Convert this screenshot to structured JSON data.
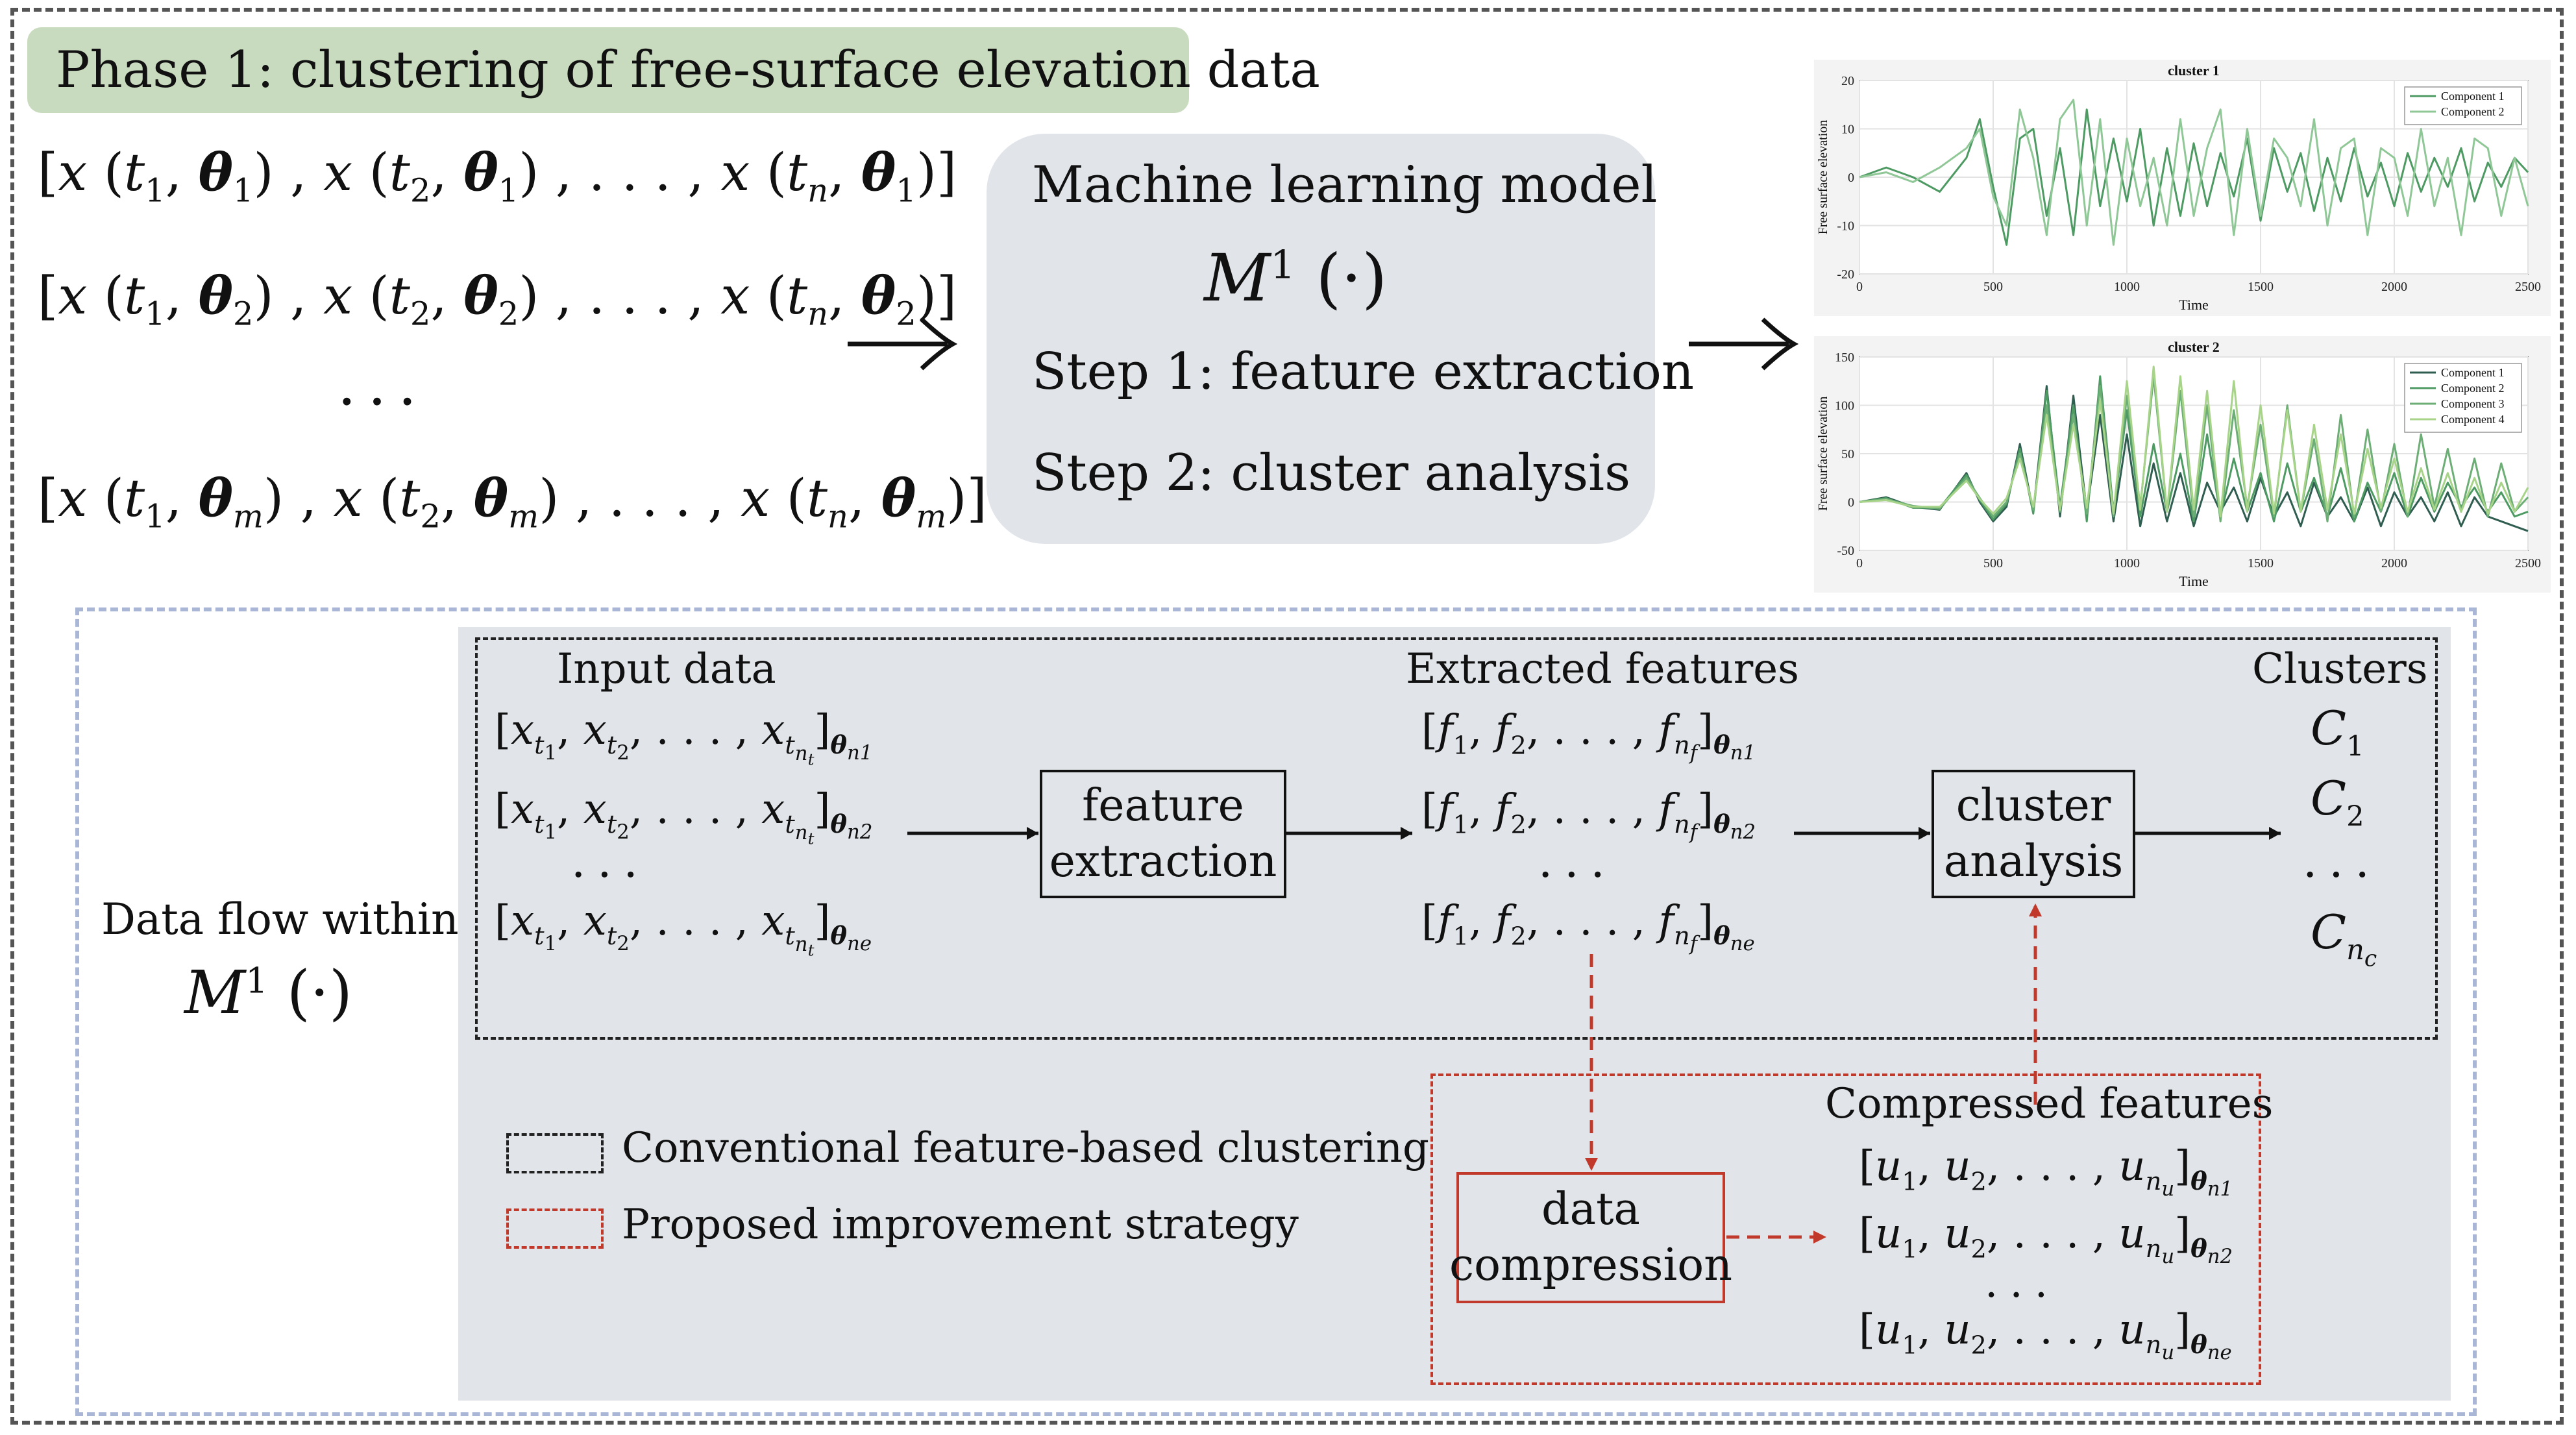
{
  "phase": {
    "title": "Phase 1: clustering of free-surface elevation data"
  },
  "inputs": {
    "row1": "θ1",
    "row2": "θ2",
    "row3": "θm",
    "ellipsis": "..."
  },
  "model": {
    "title": "Machine learning model",
    "symbol": "M",
    "superscript": "1",
    "arg": "(·)",
    "step1": "Step 1: feature extraction",
    "step2": "Step 2: cluster analysis"
  },
  "chart_data": [
    {
      "type": "line",
      "title": "cluster 1",
      "xlabel": "Time",
      "ylabel": "Free surface elevation",
      "xlim": [
        0,
        2500
      ],
      "ylim": [
        -20,
        20
      ],
      "xticks": [
        0,
        500,
        1000,
        1500,
        2000,
        2500
      ],
      "yticks": [
        -20,
        -10,
        0,
        10,
        20
      ],
      "grid": true,
      "legend": "top-right",
      "x": [
        0,
        100,
        200,
        300,
        400,
        450,
        500,
        550,
        600,
        650,
        700,
        750,
        800,
        850,
        900,
        950,
        1000,
        1050,
        1100,
        1150,
        1200,
        1250,
        1300,
        1350,
        1400,
        1450,
        1500,
        1550,
        1600,
        1650,
        1700,
        1750,
        1800,
        1850,
        1900,
        1950,
        2000,
        2050,
        2100,
        2150,
        2200,
        2250,
        2300,
        2350,
        2400,
        2450,
        2500
      ],
      "series": [
        {
          "name": "Component 1",
          "color": "#4e9a63",
          "values": [
            0,
            2,
            0,
            -3,
            4,
            12,
            -2,
            -14,
            8,
            10,
            -8,
            6,
            -12,
            14,
            -6,
            8,
            -5,
            10,
            -10,
            6,
            -8,
            7,
            -6,
            5,
            -4,
            8,
            -9,
            6,
            -3,
            5,
            -7,
            4,
            -5,
            6,
            -4,
            3,
            -6,
            5,
            -3,
            4,
            -2,
            6,
            -5,
            3,
            -2,
            4,
            1
          ]
        },
        {
          "name": "Component 2",
          "color": "#8fc796",
          "values": [
            0,
            1,
            -1,
            2,
            6,
            10,
            -4,
            -10,
            14,
            4,
            -12,
            12,
            16,
            -10,
            12,
            -14,
            8,
            -6,
            4,
            -10,
            12,
            -8,
            6,
            14,
            -12,
            10,
            -8,
            8,
            4,
            -6,
            12,
            -10,
            6,
            8,
            -12,
            6,
            4,
            -8,
            10,
            -6,
            4,
            -12,
            8,
            6,
            -8,
            4,
            -6
          ]
        }
      ]
    },
    {
      "type": "line",
      "title": "cluster 2",
      "xlabel": "Time",
      "ylabel": "Free surface elevation",
      "xlim": [
        0,
        2500
      ],
      "ylim": [
        -50,
        150
      ],
      "xticks": [
        0,
        500,
        1000,
        1500,
        2000,
        2500
      ],
      "yticks": [
        -50,
        0,
        50,
        100,
        150
      ],
      "grid": true,
      "legend": "top-right",
      "x": [
        0,
        100,
        200,
        300,
        400,
        450,
        500,
        550,
        600,
        650,
        700,
        750,
        800,
        850,
        900,
        950,
        1000,
        1050,
        1100,
        1150,
        1200,
        1250,
        1300,
        1350,
        1400,
        1450,
        1500,
        1550,
        1600,
        1650,
        1700,
        1750,
        1800,
        1850,
        1900,
        1950,
        2000,
        2050,
        2100,
        2150,
        2200,
        2250,
        2300,
        2350,
        2400,
        2450,
        2500
      ],
      "series": [
        {
          "name": "Component 1",
          "color": "#2f5d50",
          "values": [
            0,
            5,
            -5,
            -8,
            30,
            0,
            -20,
            -5,
            60,
            -10,
            120,
            -15,
            110,
            -10,
            90,
            -20,
            70,
            -25,
            40,
            -20,
            30,
            -25,
            20,
            -10,
            15,
            -20,
            25,
            -15,
            10,
            -25,
            20,
            -15,
            5,
            -20,
            15,
            -25,
            10,
            -15,
            5,
            -20,
            10,
            -25,
            5,
            -15,
            -20,
            -25,
            -30
          ]
        },
        {
          "name": "Component 2",
          "color": "#4e9a63",
          "values": [
            0,
            4,
            -6,
            -6,
            28,
            2,
            -18,
            -2,
            55,
            -12,
            115,
            -5,
            100,
            -20,
            130,
            -10,
            95,
            -15,
            60,
            -10,
            50,
            -20,
            70,
            -15,
            45,
            -10,
            30,
            -20,
            40,
            -10,
            25,
            -15,
            35,
            -20,
            20,
            -10,
            30,
            -15,
            25,
            -10,
            20,
            -5,
            15,
            -10,
            10,
            -15,
            -10
          ]
        },
        {
          "name": "Component 3",
          "color": "#6cae75",
          "values": [
            0,
            3,
            -4,
            -7,
            25,
            4,
            -15,
            0,
            50,
            -8,
            100,
            -10,
            90,
            -12,
            120,
            -15,
            110,
            -5,
            130,
            -10,
            115,
            -15,
            100,
            -20,
            95,
            -5,
            80,
            -15,
            100,
            -10,
            65,
            -20,
            90,
            -15,
            75,
            -10,
            60,
            -15,
            70,
            -5,
            55,
            -10,
            45,
            -15,
            40,
            -10,
            5
          ]
        },
        {
          "name": "Component 4",
          "color": "#a8d48a",
          "values": [
            0,
            2,
            -5,
            -5,
            22,
            3,
            -12,
            4,
            45,
            -5,
            90,
            -8,
            80,
            -6,
            105,
            -12,
            125,
            -8,
            140,
            -10,
            130,
            -8,
            115,
            -15,
            125,
            -10,
            100,
            -12,
            95,
            -10,
            80,
            -8,
            70,
            -12,
            55,
            -6,
            45,
            -10,
            35,
            -8,
            30,
            -10,
            25,
            -12,
            20,
            -10,
            15
          ]
        }
      ]
    }
  ],
  "flow": {
    "side_label": "Data flow within",
    "input_title": "Input data",
    "extracted_title": "Extracted features",
    "clusters_title": "Clusters",
    "feature_box": "feature extraction",
    "cluster_box": "cluster analysis",
    "compression_box": "data compression",
    "compressed_title": "Compressed features",
    "subs": [
      "n1",
      "n2",
      "ne"
    ],
    "cluster_labels": [
      "C1",
      "C2",
      "Cnc"
    ],
    "dots": "...",
    "legend_conventional": "Conventional feature-based clustering",
    "legend_proposed": "Proposed improvement strategy"
  }
}
